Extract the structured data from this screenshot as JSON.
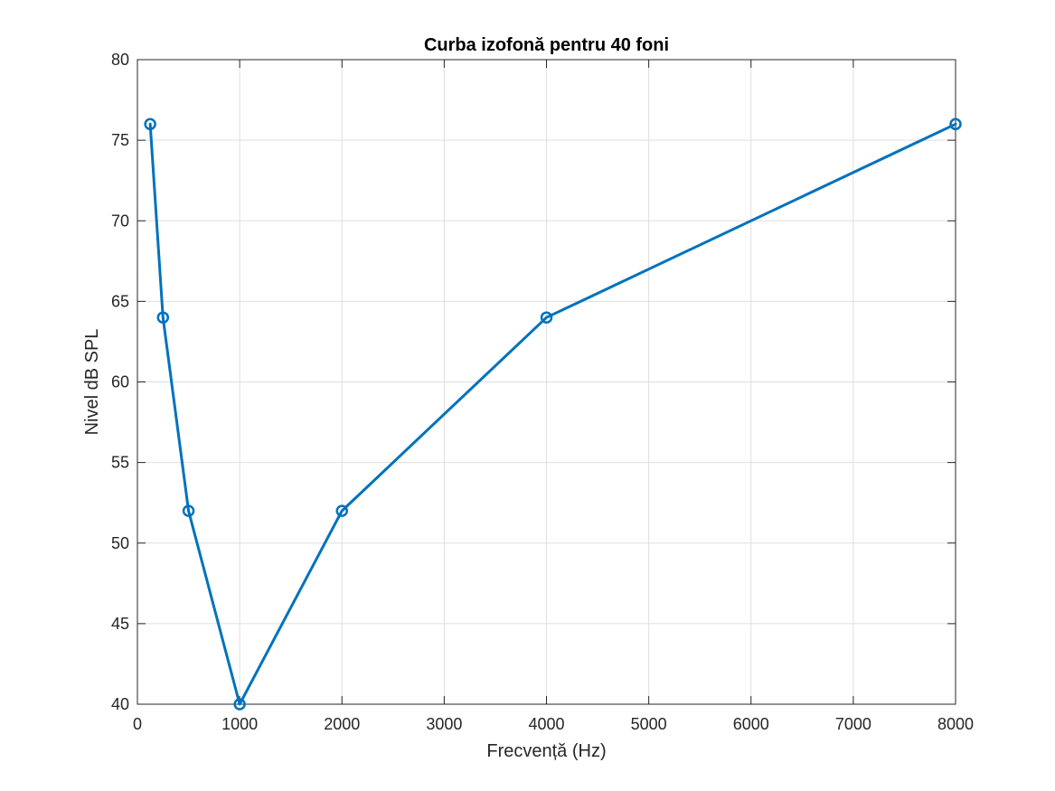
{
  "chart_data": {
    "type": "line",
    "title": "Curba izofonă pentru 40 foni",
    "xlabel": "Frecvență (Hz)",
    "ylabel": "Nivel dB SPL",
    "xlim": [
      0,
      8000
    ],
    "ylim": [
      40,
      80
    ],
    "xticks": [
      0,
      1000,
      2000,
      3000,
      4000,
      5000,
      6000,
      7000,
      8000
    ],
    "yticks": [
      40,
      45,
      50,
      55,
      60,
      65,
      70,
      75,
      80
    ],
    "grid": true,
    "legend": "none",
    "series": [
      {
        "color": "#0072bd",
        "marker": "circle",
        "x": [
          125,
          250,
          500,
          1000,
          2000,
          4000,
          8000
        ],
        "y": [
          76,
          64,
          52,
          40,
          52,
          64,
          76
        ]
      }
    ]
  }
}
